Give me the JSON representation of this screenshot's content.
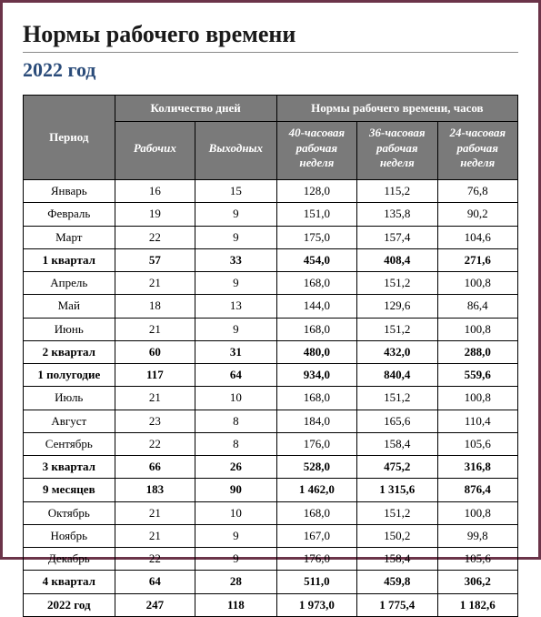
{
  "title": "Нормы рабочего времени",
  "subtitle": "2022 год",
  "colors": {
    "page_border": "#6b3449",
    "title_rule": "#8a8a8a",
    "subtitle_color": "#2b4c7a",
    "header_bg": "#7a7a7a",
    "header_fg": "#ffffff",
    "cell_border": "#000000"
  },
  "typography": {
    "title_fontsize": 26,
    "subtitle_fontsize": 22,
    "table_fontsize": 13
  },
  "table": {
    "type": "table",
    "header_row1": {
      "period": "Период",
      "days_group": "Количество дней",
      "hours_group": "Нормы рабочего времени, часов"
    },
    "header_row2": {
      "work_days": "Рабочих",
      "off_days": "Выходных",
      "h40": "40-часовая рабочая неделя",
      "h36": "36-часовая рабочая неделя",
      "h24": "24-часовая рабочая неделя"
    },
    "rows": [
      {
        "period": "Январь",
        "work": "16",
        "off": "15",
        "h40": "128,0",
        "h36": "115,2",
        "h24": "76,8",
        "bold": false
      },
      {
        "period": "Февраль",
        "work": "19",
        "off": "9",
        "h40": "151,0",
        "h36": "135,8",
        "h24": "90,2",
        "bold": false
      },
      {
        "period": "Март",
        "work": "22",
        "off": "9",
        "h40": "175,0",
        "h36": "157,4",
        "h24": "104,6",
        "bold": false
      },
      {
        "period": "1 квартал",
        "work": "57",
        "off": "33",
        "h40": "454,0",
        "h36": "408,4",
        "h24": "271,6",
        "bold": true
      },
      {
        "period": "Апрель",
        "work": "21",
        "off": "9",
        "h40": "168,0",
        "h36": "151,2",
        "h24": "100,8",
        "bold": false
      },
      {
        "period": "Май",
        "work": "18",
        "off": "13",
        "h40": "144,0",
        "h36": "129,6",
        "h24": "86,4",
        "bold": false
      },
      {
        "period": "Июнь",
        "work": "21",
        "off": "9",
        "h40": "168,0",
        "h36": "151,2",
        "h24": "100,8",
        "bold": false
      },
      {
        "period": "2 квартал",
        "work": "60",
        "off": "31",
        "h40": "480,0",
        "h36": "432,0",
        "h24": "288,0",
        "bold": true
      },
      {
        "period": "1 полугодие",
        "work": "117",
        "off": "64",
        "h40": "934,0",
        "h36": "840,4",
        "h24": "559,6",
        "bold": true
      },
      {
        "period": "Июль",
        "work": "21",
        "off": "10",
        "h40": "168,0",
        "h36": "151,2",
        "h24": "100,8",
        "bold": false
      },
      {
        "period": "Август",
        "work": "23",
        "off": "8",
        "h40": "184,0",
        "h36": "165,6",
        "h24": "110,4",
        "bold": false
      },
      {
        "period": "Сентябрь",
        "work": "22",
        "off": "8",
        "h40": "176,0",
        "h36": "158,4",
        "h24": "105,6",
        "bold": false
      },
      {
        "period": "3 квартал",
        "work": "66",
        "off": "26",
        "h40": "528,0",
        "h36": "475,2",
        "h24": "316,8",
        "bold": true
      },
      {
        "period": "9 месяцев",
        "work": "183",
        "off": "90",
        "h40": "1 462,0",
        "h36": "1 315,6",
        "h24": "876,4",
        "bold": true
      },
      {
        "period": "Октябрь",
        "work": "21",
        "off": "10",
        "h40": "168,0",
        "h36": "151,2",
        "h24": "100,8",
        "bold": false
      },
      {
        "period": "Ноябрь",
        "work": "21",
        "off": "9",
        "h40": "167,0",
        "h36": "150,2",
        "h24": "99,8",
        "bold": false
      },
      {
        "period": "Декабрь",
        "work": "22",
        "off": "9",
        "h40": "176,0",
        "h36": "158,4",
        "h24": "105,6",
        "bold": false
      },
      {
        "period": "4 квартал",
        "work": "64",
        "off": "28",
        "h40": "511,0",
        "h36": "459,8",
        "h24": "306,2",
        "bold": true
      },
      {
        "period": "2022 год",
        "work": "247",
        "off": "118",
        "h40": "1 973,0",
        "h36": "1 775,4",
        "h24": "1 182,6",
        "bold": true
      }
    ]
  }
}
